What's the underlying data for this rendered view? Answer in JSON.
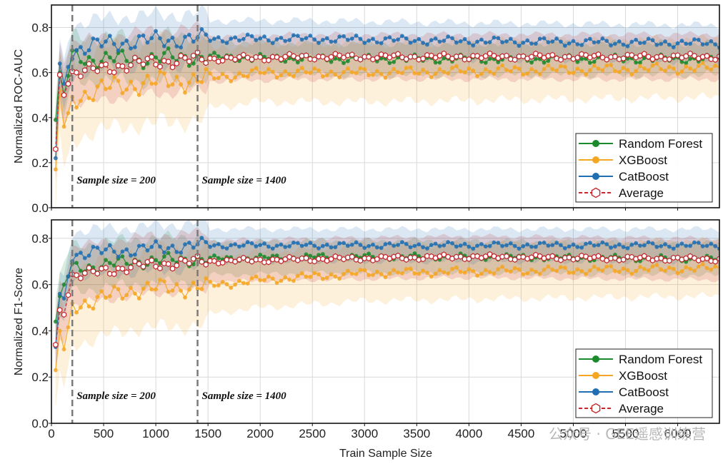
{
  "figure": {
    "xlabel": "Train Sample Size",
    "watermark": "公众号 · GEE遥感训练营"
  },
  "colors": {
    "Random Forest": "#1a8a2a",
    "XGBoost": "#f5a623",
    "CatBoost": "#1f6fb2",
    "Average": "#c0282d",
    "vline": "#7a7a7a",
    "grid": "#d9d9d9"
  },
  "chart_data": [
    {
      "type": "line",
      "ylabel": "Normalized ROC-AUC",
      "xlim": [
        0,
        6400
      ],
      "ylim": [
        0,
        0.9
      ],
      "xticks": [
        0,
        500,
        1000,
        1500,
        2000,
        2500,
        3000,
        3500,
        4000,
        4500,
        5000,
        5500,
        6000
      ],
      "yticks": [
        0.0,
        0.2,
        0.4,
        0.6,
        0.8
      ],
      "ytick_labels": [
        "0.0",
        "0.2",
        "0.4",
        "0.6",
        "0.8"
      ],
      "x_start": 40,
      "x_step": 40,
      "n_points": 160,
      "series": [
        {
          "name": "Random Forest",
          "marker": "circle",
          "anchors": [
            [
              40,
              0.39
            ],
            [
              80,
              0.6
            ],
            [
              120,
              0.5
            ],
            [
              200,
              0.67
            ],
            [
              400,
              0.66
            ],
            [
              800,
              0.66
            ],
            [
              1400,
              0.67
            ],
            [
              2500,
              0.66
            ],
            [
              4000,
              0.66
            ],
            [
              6400,
              0.66
            ]
          ],
          "band": 0.07,
          "noise": 0.02
        },
        {
          "name": "XGBoost",
          "marker": "circle",
          "anchors": [
            [
              40,
              0.17
            ],
            [
              80,
              0.52
            ],
            [
              120,
              0.36
            ],
            [
              200,
              0.48
            ],
            [
              400,
              0.52
            ],
            [
              800,
              0.55
            ],
            [
              1400,
              0.57
            ],
            [
              2000,
              0.6
            ],
            [
              3000,
              0.6
            ],
            [
              4500,
              0.61
            ],
            [
              6400,
              0.62
            ]
          ],
          "band": 0.13,
          "noise": 0.025
        },
        {
          "name": "CatBoost",
          "marker": "circle",
          "anchors": [
            [
              40,
              0.22
            ],
            [
              80,
              0.64
            ],
            [
              120,
              0.55
            ],
            [
              200,
              0.7
            ],
            [
              400,
              0.72
            ],
            [
              800,
              0.74
            ],
            [
              1400,
              0.75
            ],
            [
              2500,
              0.75
            ],
            [
              4000,
              0.74
            ],
            [
              6400,
              0.73
            ]
          ],
          "band": 0.08,
          "noise": 0.02
        },
        {
          "name": "Average",
          "marker": "hexagon-open",
          "line": "dashed",
          "anchors": [
            [
              40,
              0.26
            ],
            [
              80,
              0.59
            ],
            [
              120,
              0.5
            ],
            [
              200,
              0.6
            ],
            [
              400,
              0.61
            ],
            [
              800,
              0.64
            ],
            [
              1400,
              0.66
            ],
            [
              2500,
              0.67
            ],
            [
              4000,
              0.67
            ],
            [
              6400,
              0.67
            ]
          ],
          "band": 0.1,
          "noise": 0.015
        }
      ],
      "vlines": [
        200,
        1400
      ],
      "annotations": [
        {
          "x": 200,
          "text": "Sample size = 200"
        },
        {
          "x": 1400,
          "text": "Sample size = 1400"
        }
      ],
      "legend": {
        "location": "lower-right",
        "entries": [
          "Random Forest",
          "XGBoost",
          "CatBoost",
          "Average"
        ]
      }
    },
    {
      "type": "line",
      "ylabel": "Normalized F1-Score",
      "xlim": [
        0,
        6400
      ],
      "ylim": [
        0,
        0.88
      ],
      "xticks": [
        0,
        500,
        1000,
        1500,
        2000,
        2500,
        3000,
        3500,
        4000,
        4500,
        5000,
        5500,
        6000
      ],
      "yticks": [
        0.0,
        0.2,
        0.4,
        0.6,
        0.8
      ],
      "ytick_labels": [
        "0.0",
        "0.2",
        "0.4",
        "0.6",
        "0.8"
      ],
      "x_start": 40,
      "x_step": 40,
      "n_points": 160,
      "series": [
        {
          "name": "Random Forest",
          "marker": "circle",
          "anchors": [
            [
              40,
              0.44
            ],
            [
              80,
              0.55
            ],
            [
              120,
              0.6
            ],
            [
              200,
              0.67
            ],
            [
              400,
              0.68
            ],
            [
              800,
              0.7
            ],
            [
              1400,
              0.71
            ],
            [
              2500,
              0.72
            ],
            [
              4000,
              0.72
            ],
            [
              6400,
              0.71
            ]
          ],
          "band": 0.07,
          "noise": 0.015
        },
        {
          "name": "XGBoost",
          "marker": "circle",
          "anchors": [
            [
              40,
              0.23
            ],
            [
              80,
              0.4
            ],
            [
              120,
              0.32
            ],
            [
              200,
              0.51
            ],
            [
              400,
              0.53
            ],
            [
              800,
              0.58
            ],
            [
              1400,
              0.59
            ],
            [
              2000,
              0.62
            ],
            [
              3000,
              0.65
            ],
            [
              4500,
              0.66
            ],
            [
              6400,
              0.67
            ]
          ],
          "band": 0.12,
          "noise": 0.02
        },
        {
          "name": "CatBoost",
          "marker": "circle",
          "anchors": [
            [
              40,
              0.33
            ],
            [
              80,
              0.56
            ],
            [
              120,
              0.54
            ],
            [
              200,
              0.73
            ],
            [
              400,
              0.74
            ],
            [
              800,
              0.75
            ],
            [
              1400,
              0.77
            ],
            [
              2500,
              0.77
            ],
            [
              4000,
              0.77
            ],
            [
              6400,
              0.77
            ]
          ],
          "band": 0.07,
          "noise": 0.015
        },
        {
          "name": "Average",
          "marker": "hexagon-open",
          "line": "dashed",
          "anchors": [
            [
              40,
              0.34
            ],
            [
              80,
              0.49
            ],
            [
              120,
              0.47
            ],
            [
              200,
              0.64
            ],
            [
              400,
              0.65
            ],
            [
              800,
              0.68
            ],
            [
              1400,
              0.7
            ],
            [
              2500,
              0.71
            ],
            [
              4000,
              0.72
            ],
            [
              6400,
              0.71
            ]
          ],
          "band": 0.09,
          "noise": 0.012
        }
      ],
      "vlines": [
        200,
        1400
      ],
      "annotations": [
        {
          "x": 200,
          "text": "Sample size = 200"
        },
        {
          "x": 1400,
          "text": "Sample size = 1400"
        }
      ],
      "legend": {
        "location": "lower-right",
        "entries": [
          "Random Forest",
          "XGBoost",
          "CatBoost",
          "Average"
        ]
      }
    }
  ]
}
